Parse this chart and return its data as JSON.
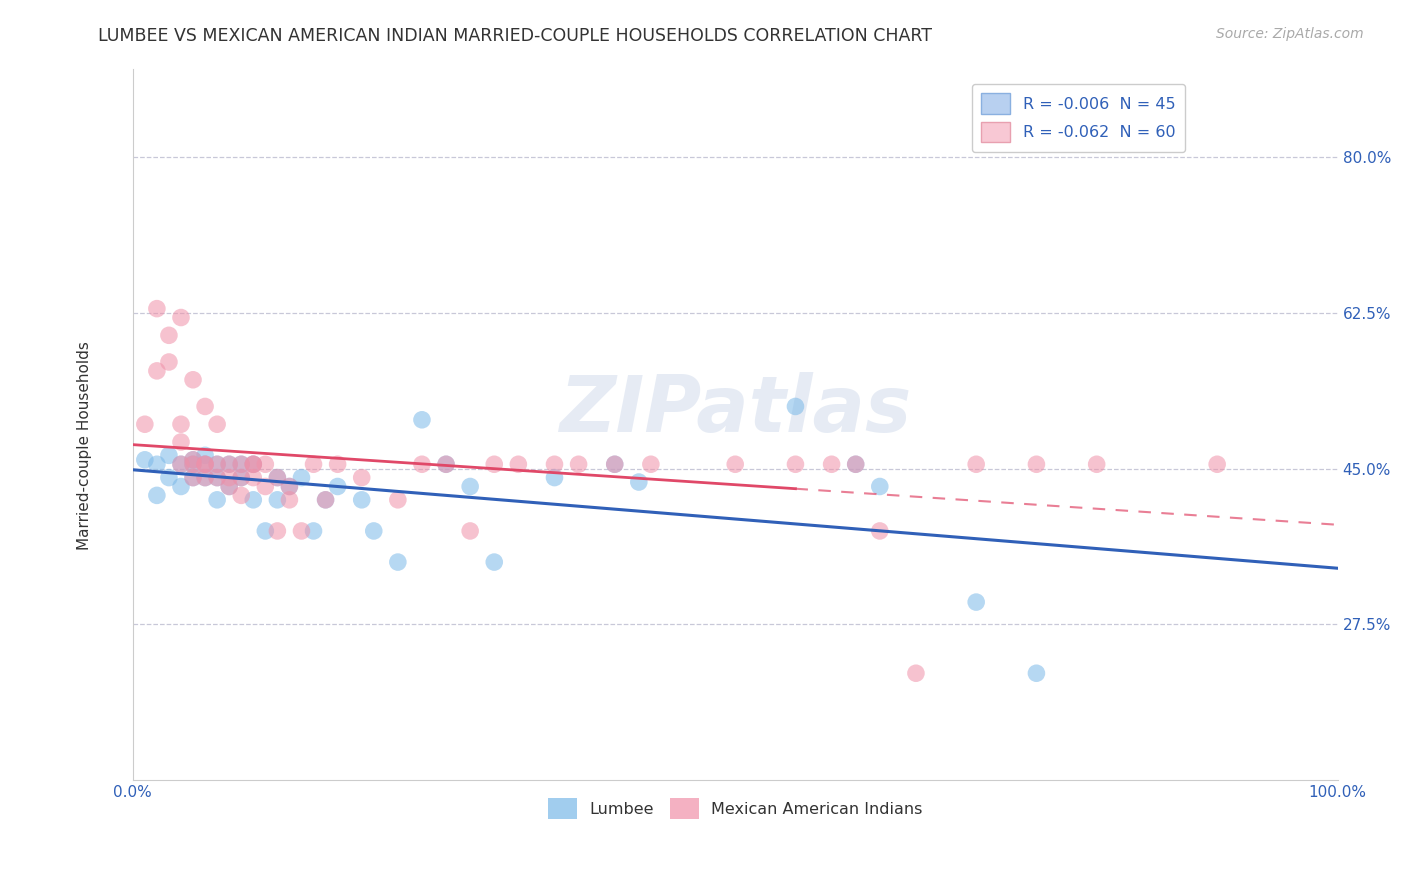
{
  "title": "LUMBEE VS MEXICAN AMERICAN INDIAN MARRIED-COUPLE HOUSEHOLDS CORRELATION CHART",
  "source": "Source: ZipAtlas.com",
  "ylabel": "Married-couple Households",
  "watermark": "ZIPatlas",
  "xlim": [
    0.0,
    1.0
  ],
  "ylim": [
    0.1,
    0.9
  ],
  "yticks": [
    0.275,
    0.45,
    0.625,
    0.8
  ],
  "ytick_labels": [
    "27.5%",
    "45.0%",
    "62.5%",
    "80.0%"
  ],
  "xtick_labels": [
    "0.0%",
    "100.0%"
  ],
  "legend_r_entries": [
    {
      "label": "R = -0.006  N = 45",
      "facecolor": "#b8d0f0",
      "edgecolor": "#8ab0e0"
    },
    {
      "label": "R = -0.062  N = 60",
      "facecolor": "#f8c8d4",
      "edgecolor": "#e8a0b0"
    }
  ],
  "lumbee_color": "#7ab8e8",
  "mexican_color": "#f090a8",
  "lumbee_line_color": "#3060b8",
  "mexican_line_color": "#e04868",
  "mexican_line_dash_color": "#e8a0b0",
  "background_color": "#ffffff",
  "grid_color": "#c8c8d8",
  "lumbee_points": [
    [
      0.01,
      0.46
    ],
    [
      0.02,
      0.455
    ],
    [
      0.02,
      0.42
    ],
    [
      0.03,
      0.465
    ],
    [
      0.03,
      0.44
    ],
    [
      0.04,
      0.455
    ],
    [
      0.04,
      0.43
    ],
    [
      0.05,
      0.46
    ],
    [
      0.05,
      0.44
    ],
    [
      0.05,
      0.455
    ],
    [
      0.06,
      0.455
    ],
    [
      0.06,
      0.44
    ],
    [
      0.06,
      0.465
    ],
    [
      0.07,
      0.455
    ],
    [
      0.07,
      0.44
    ],
    [
      0.07,
      0.415
    ],
    [
      0.08,
      0.455
    ],
    [
      0.08,
      0.43
    ],
    [
      0.09,
      0.455
    ],
    [
      0.09,
      0.44
    ],
    [
      0.1,
      0.455
    ],
    [
      0.1,
      0.415
    ],
    [
      0.11,
      0.38
    ],
    [
      0.12,
      0.44
    ],
    [
      0.12,
      0.415
    ],
    [
      0.13,
      0.43
    ],
    [
      0.14,
      0.44
    ],
    [
      0.15,
      0.38
    ],
    [
      0.16,
      0.415
    ],
    [
      0.17,
      0.43
    ],
    [
      0.19,
      0.415
    ],
    [
      0.2,
      0.38
    ],
    [
      0.22,
      0.345
    ],
    [
      0.24,
      0.505
    ],
    [
      0.26,
      0.455
    ],
    [
      0.28,
      0.43
    ],
    [
      0.3,
      0.345
    ],
    [
      0.35,
      0.44
    ],
    [
      0.4,
      0.455
    ],
    [
      0.42,
      0.435
    ],
    [
      0.55,
      0.52
    ],
    [
      0.6,
      0.455
    ],
    [
      0.62,
      0.43
    ],
    [
      0.7,
      0.3
    ],
    [
      0.75,
      0.22
    ]
  ],
  "mexican_points": [
    [
      0.01,
      0.5
    ],
    [
      0.02,
      0.56
    ],
    [
      0.02,
      0.63
    ],
    [
      0.03,
      0.57
    ],
    [
      0.03,
      0.6
    ],
    [
      0.04,
      0.62
    ],
    [
      0.04,
      0.5
    ],
    [
      0.04,
      0.48
    ],
    [
      0.04,
      0.455
    ],
    [
      0.05,
      0.55
    ],
    [
      0.05,
      0.455
    ],
    [
      0.05,
      0.44
    ],
    [
      0.05,
      0.46
    ],
    [
      0.06,
      0.52
    ],
    [
      0.06,
      0.455
    ],
    [
      0.06,
      0.44
    ],
    [
      0.06,
      0.455
    ],
    [
      0.07,
      0.5
    ],
    [
      0.07,
      0.455
    ],
    [
      0.07,
      0.44
    ],
    [
      0.08,
      0.455
    ],
    [
      0.08,
      0.44
    ],
    [
      0.08,
      0.43
    ],
    [
      0.09,
      0.455
    ],
    [
      0.09,
      0.44
    ],
    [
      0.09,
      0.42
    ],
    [
      0.1,
      0.455
    ],
    [
      0.1,
      0.44
    ],
    [
      0.1,
      0.455
    ],
    [
      0.11,
      0.455
    ],
    [
      0.11,
      0.43
    ],
    [
      0.12,
      0.44
    ],
    [
      0.12,
      0.38
    ],
    [
      0.13,
      0.43
    ],
    [
      0.13,
      0.415
    ],
    [
      0.14,
      0.38
    ],
    [
      0.15,
      0.455
    ],
    [
      0.16,
      0.415
    ],
    [
      0.17,
      0.455
    ],
    [
      0.19,
      0.44
    ],
    [
      0.22,
      0.415
    ],
    [
      0.24,
      0.455
    ],
    [
      0.26,
      0.455
    ],
    [
      0.28,
      0.38
    ],
    [
      0.3,
      0.455
    ],
    [
      0.32,
      0.455
    ],
    [
      0.35,
      0.455
    ],
    [
      0.37,
      0.455
    ],
    [
      0.4,
      0.455
    ],
    [
      0.43,
      0.455
    ],
    [
      0.5,
      0.455
    ],
    [
      0.55,
      0.455
    ],
    [
      0.58,
      0.455
    ],
    [
      0.6,
      0.455
    ],
    [
      0.62,
      0.38
    ],
    [
      0.65,
      0.22
    ],
    [
      0.7,
      0.455
    ],
    [
      0.75,
      0.455
    ],
    [
      0.8,
      0.455
    ],
    [
      0.9,
      0.455
    ]
  ],
  "title_fontsize": 12.5,
  "label_fontsize": 11,
  "tick_fontsize": 11,
  "source_fontsize": 10
}
